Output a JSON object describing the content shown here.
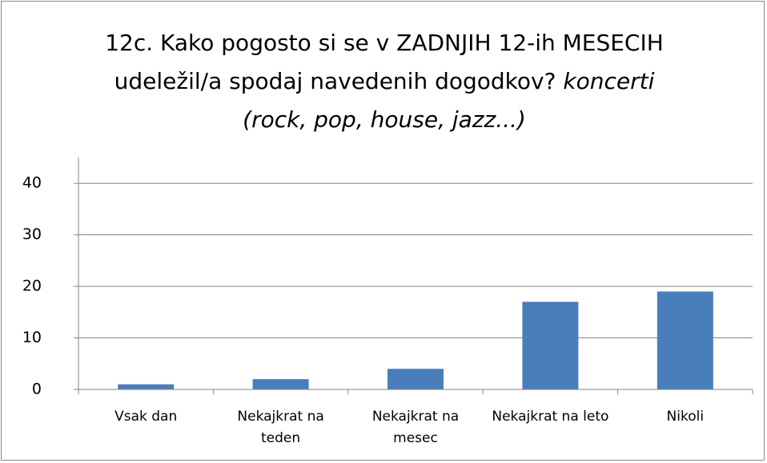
{
  "chart_data": {
    "type": "bar",
    "title": "12c. Kako pogosto si se v ZADNJIH 12-ih MESECIH udeležil/a spodaj navedenih dogodkov?",
    "subtitle": "koncerti (rock, pop, house, jazz...)",
    "categories": [
      "Vsak dan",
      "Nekajkrat na teden",
      "Nekajkrat na mesec",
      "Nekajkrat na leto",
      "Nikoli"
    ],
    "values": [
      1,
      2,
      4,
      17,
      19
    ],
    "color": "#4a7ebb",
    "ylim": [
      0,
      45
    ],
    "yticks": [
      0,
      10,
      20,
      30,
      40
    ],
    "grid": true
  }
}
